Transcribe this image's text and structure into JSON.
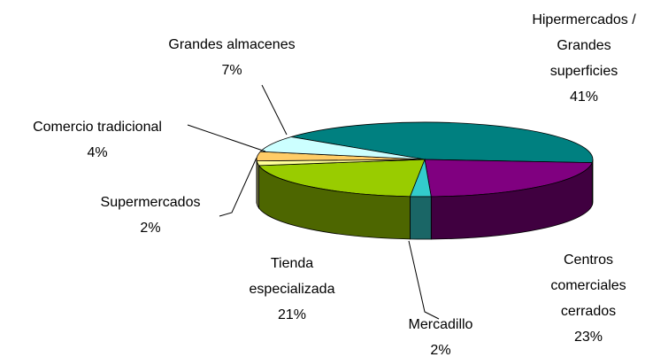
{
  "chart_data": {
    "type": "pie3d",
    "categories": [
      "Hipermercados / Grandes superficies",
      "Centros comerciales cerrados",
      "Mercadillo",
      "Tienda especializada",
      "Supermercados",
      "Comercio tradicional",
      "Grandes almacenes"
    ],
    "values": [
      41,
      23,
      2,
      21,
      2,
      4,
      7
    ],
    "value_labels": [
      "41%",
      "23%",
      "2%",
      "21%",
      "2%",
      "4%",
      "7%"
    ],
    "colors": [
      "#008080",
      "#800080",
      "#33cccc",
      "#99cc00",
      "#ffff99",
      "#ffcc66",
      "#ccffff"
    ]
  }
}
